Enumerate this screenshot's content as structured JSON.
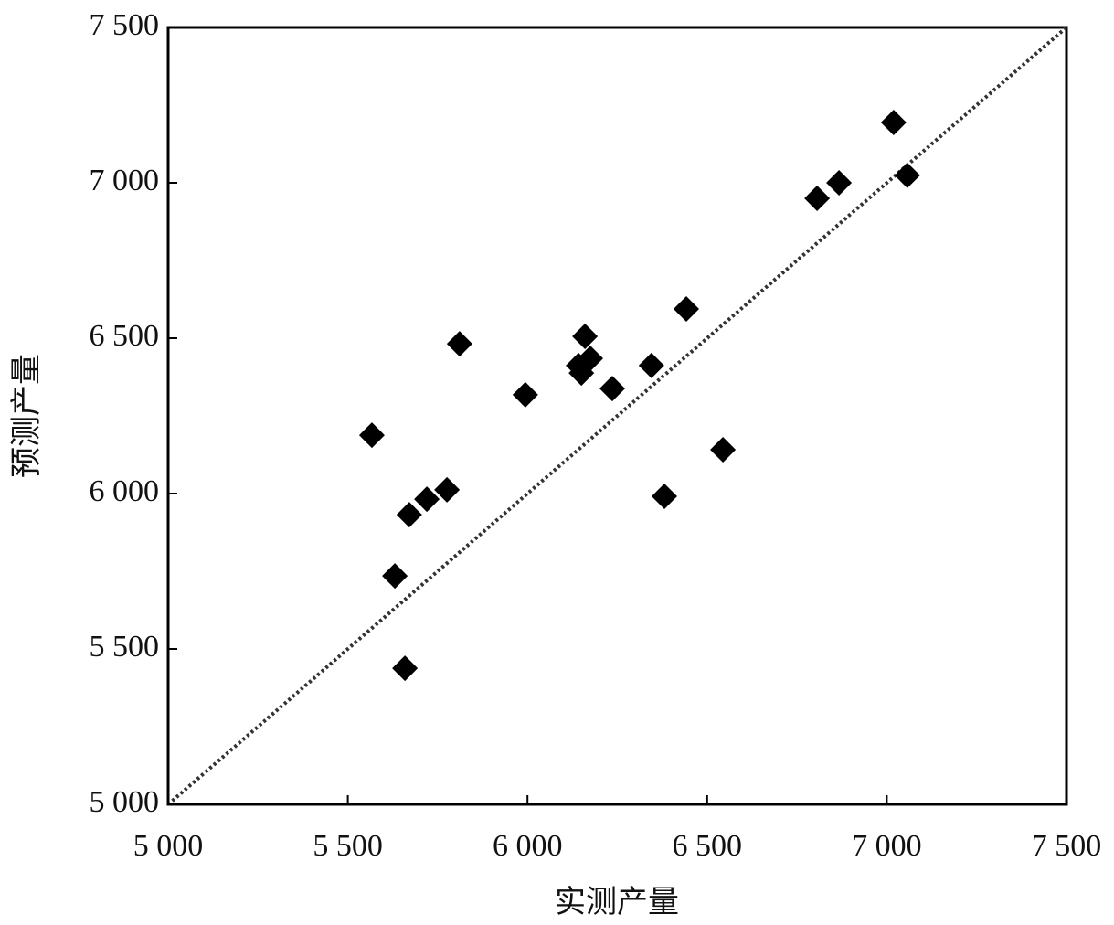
{
  "chart_data": {
    "type": "scatter",
    "x_label": "实测产量",
    "y_label": "预测产量",
    "color": "#000000",
    "x": [
      5567,
      5631,
      5659,
      5671,
      5720,
      5776,
      5811,
      5994,
      6160,
      6142,
      6150,
      6175,
      6236,
      6345,
      6381,
      6442,
      6544,
      6806,
      6867,
      7019,
      7057
    ],
    "values": [
      6188,
      5735,
      5438,
      5932,
      5982,
      6012,
      6482,
      6318,
      6506,
      6412,
      6388,
      6435,
      6338,
      6412,
      5991,
      6594,
      6141,
      6950,
      7000,
      7194,
      7024
    ],
    "xlim": [
      5000,
      7500
    ],
    "ylim": [
      5000,
      7500
    ],
    "xticks": [
      {
        "value": 5000,
        "label": "5 000"
      },
      {
        "value": 5500,
        "label": "5 500"
      },
      {
        "value": 6000,
        "label": "6 000"
      },
      {
        "value": 6500,
        "label": "6 500"
      },
      {
        "value": 7000,
        "label": "7 000"
      },
      {
        "value": 7500,
        "label": "7 500"
      }
    ],
    "yticks": [
      {
        "value": 5000,
        "label": "5 000"
      },
      {
        "value": 5500,
        "label": "5 500"
      },
      {
        "value": 6000,
        "label": "6 000"
      },
      {
        "value": 6500,
        "label": "6 500"
      },
      {
        "value": 7000,
        "label": "7 000"
      },
      {
        "value": 7500,
        "label": "7 500"
      }
    ],
    "grid": false
  }
}
